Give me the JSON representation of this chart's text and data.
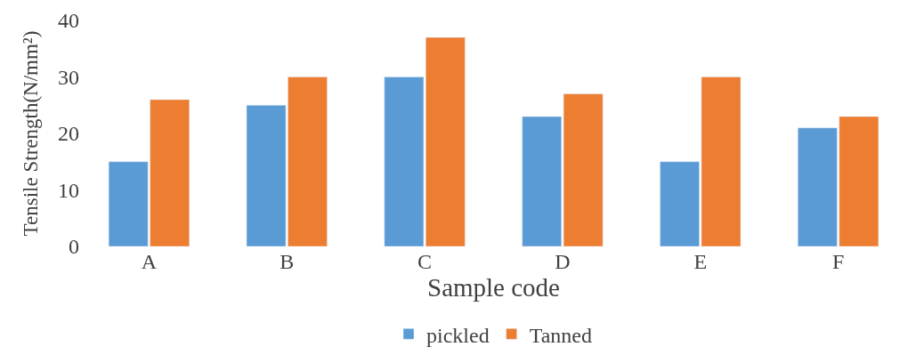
{
  "chart_data": {
    "type": "bar",
    "xlabel": "Sample code",
    "ylabel": "Tensile Strength(N/mm²)",
    "categories": [
      "A",
      "B",
      "C",
      "D",
      "E",
      "F"
    ],
    "series": [
      {
        "name": "pickled",
        "color": "#5b9bd5",
        "values": [
          15,
          25,
          30,
          23,
          15,
          21
        ]
      },
      {
        "name": "Tanned",
        "color": "#ed7d31",
        "values": [
          26,
          30,
          37,
          27,
          30,
          23
        ]
      }
    ],
    "ylim": [
      0,
      40
    ],
    "yticks": [
      0,
      10,
      20,
      30,
      40
    ],
    "legend": "bottom"
  }
}
